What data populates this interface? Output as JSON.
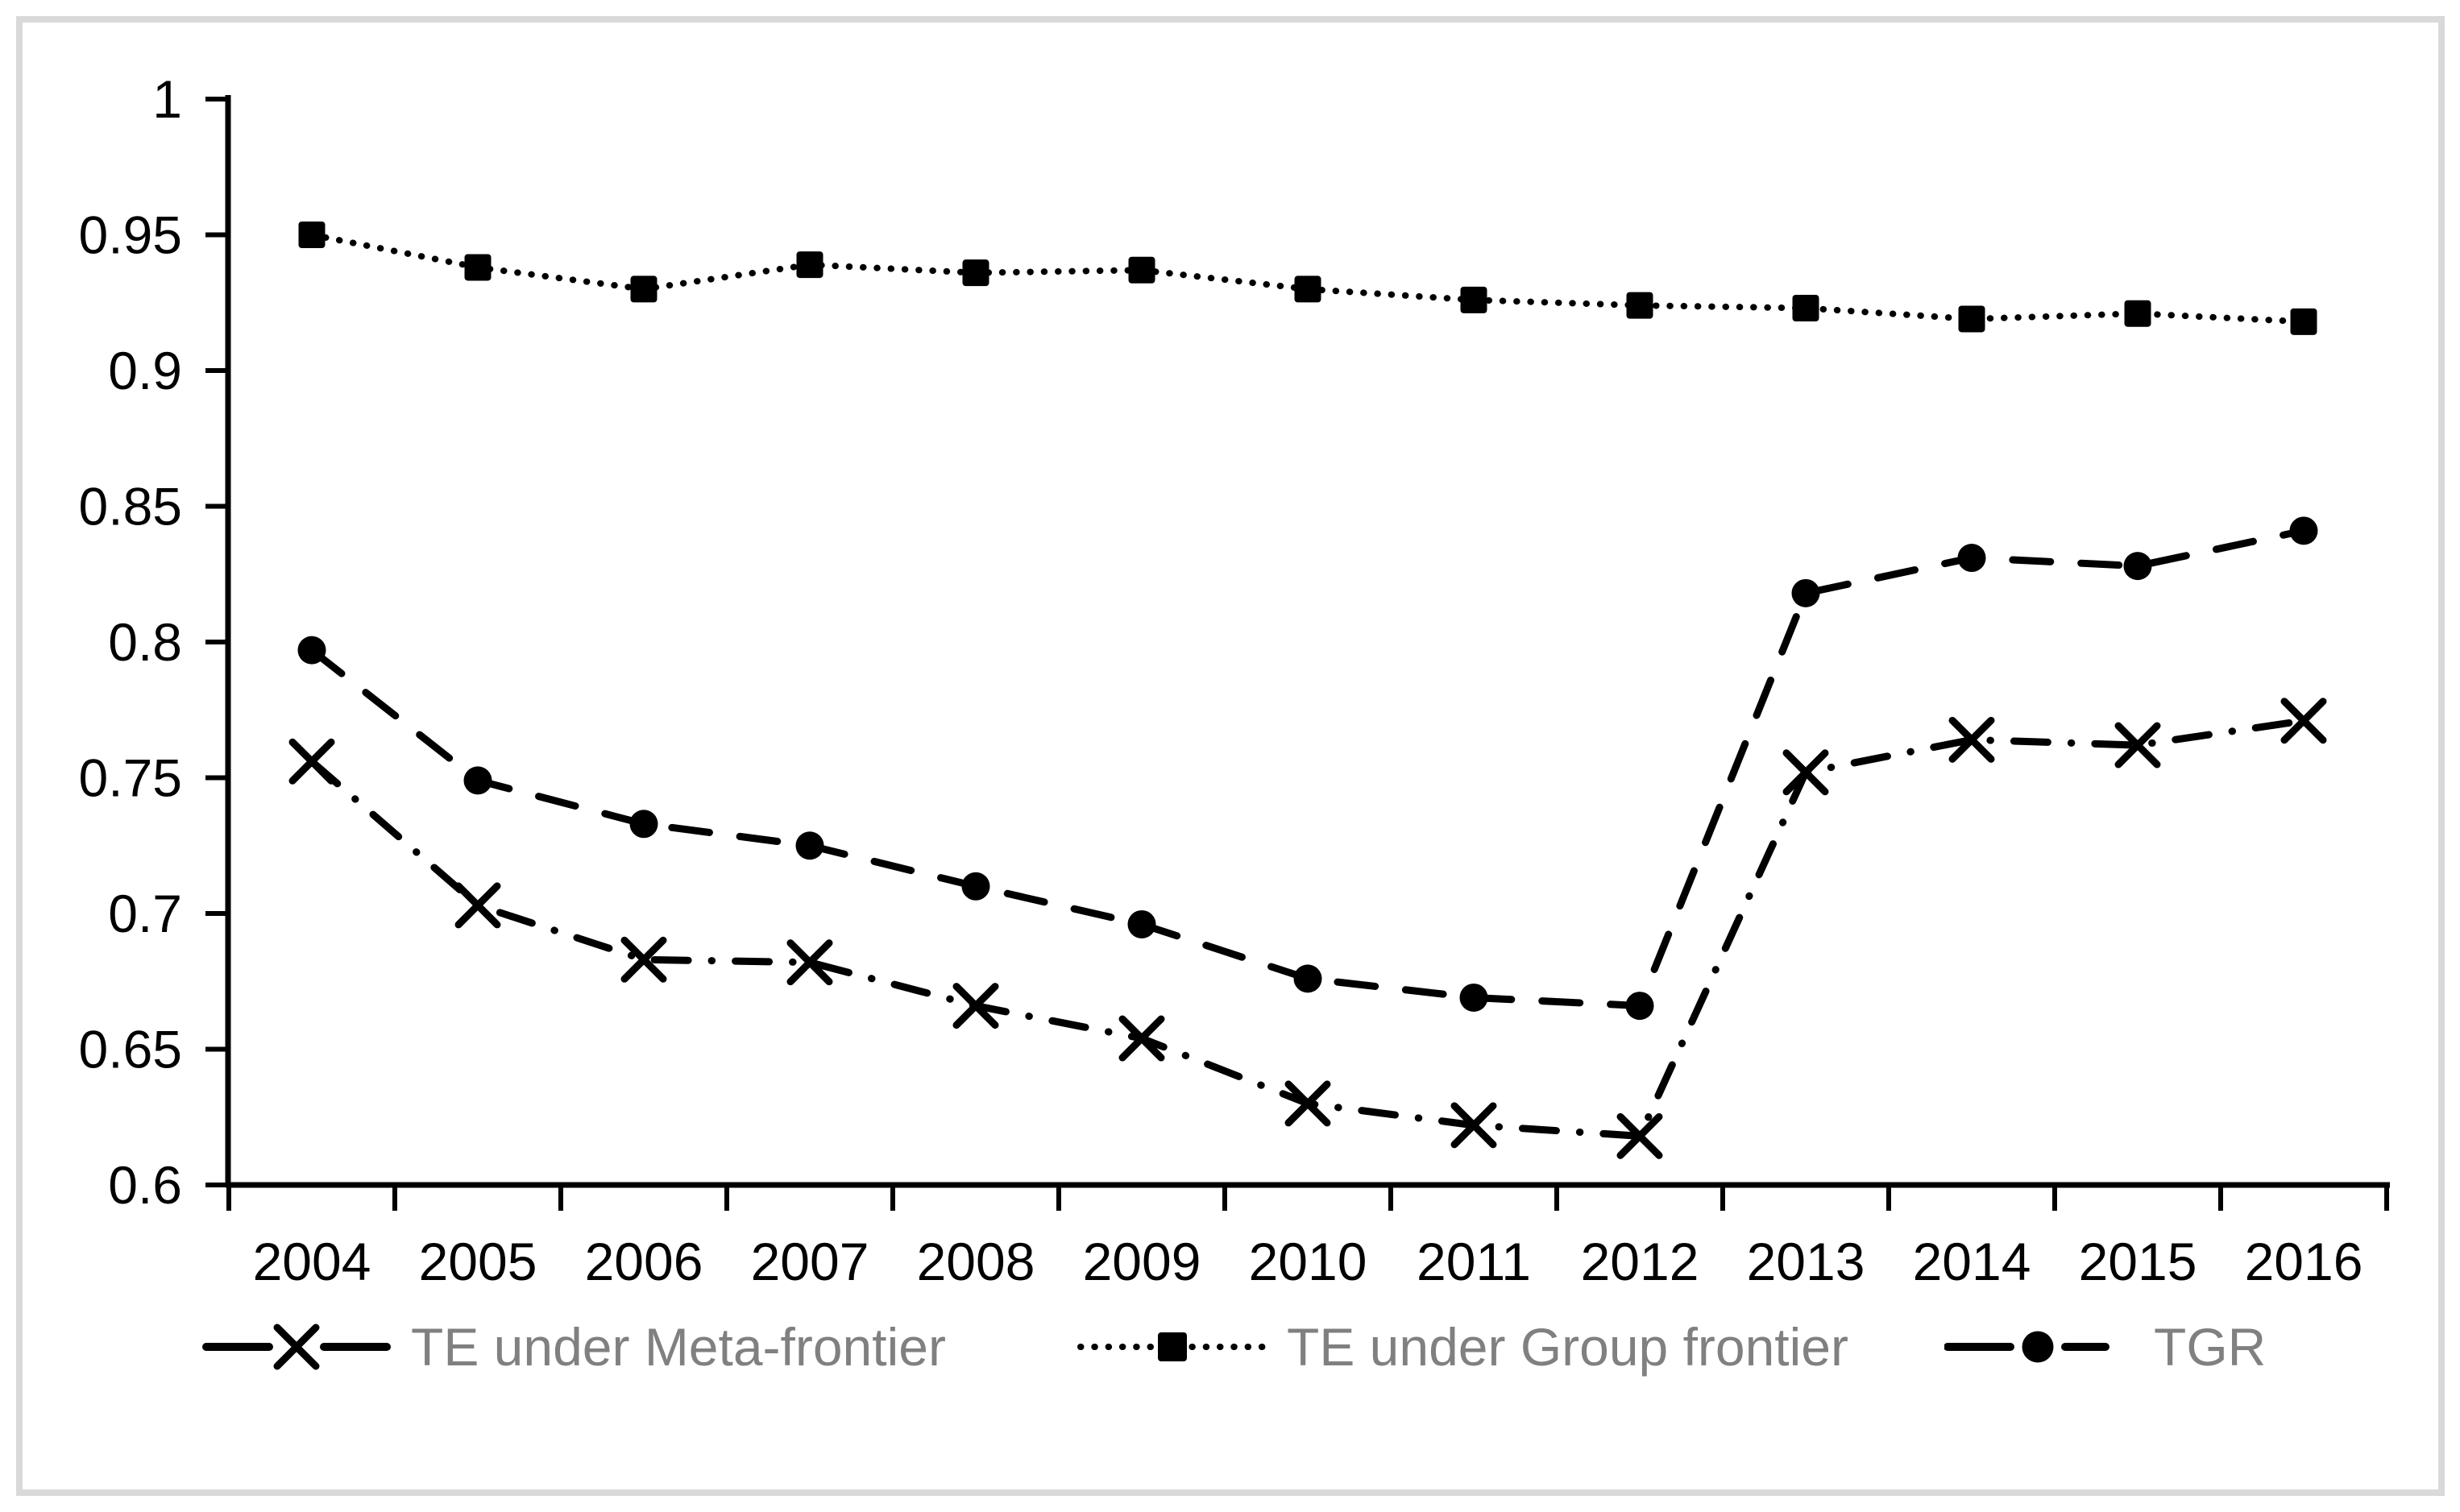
{
  "figure": {
    "background": "#ffffff",
    "frame_border_color": "#d9d9d9",
    "ink_color": "#000000",
    "legend_text_color": "#808080"
  },
  "chart_data": {
    "type": "line",
    "title": "",
    "xlabel": "",
    "ylabel": "",
    "grid": false,
    "legend_position": "bottom",
    "x_categories": [
      "2004",
      "2005",
      "2006",
      "2007",
      "2008",
      "2009",
      "2010",
      "2011",
      "2012",
      "2013",
      "2014",
      "2015",
      "2016"
    ],
    "ylim": [
      0.6,
      1.0
    ],
    "ytick_step": 0.05,
    "ytick_labels": [
      "1",
      "0.95",
      "0.9",
      "0.85",
      "0.8",
      "0.75",
      "0.7",
      "0.65",
      "0.6"
    ],
    "series": [
      {
        "name": "TE under Meta-frontier",
        "marker": "x",
        "line_style": "dash-dot",
        "values": [
          0.756,
          0.703,
          0.683,
          0.682,
          0.666,
          0.654,
          0.63,
          0.622,
          0.618,
          0.752,
          0.764,
          0.762,
          0.771
        ]
      },
      {
        "name": "TE under Group frontier",
        "marker": "square",
        "line_style": "dotted",
        "values": [
          0.95,
          0.938,
          0.93,
          0.939,
          0.936,
          0.937,
          0.93,
          0.926,
          0.924,
          0.923,
          0.919,
          0.921,
          0.918
        ]
      },
      {
        "name": "TGR",
        "marker": "circle",
        "line_style": "dashed",
        "values": [
          0.797,
          0.749,
          0.733,
          0.725,
          0.71,
          0.696,
          0.676,
          0.669,
          0.666,
          0.818,
          0.831,
          0.828,
          0.841
        ]
      }
    ]
  }
}
